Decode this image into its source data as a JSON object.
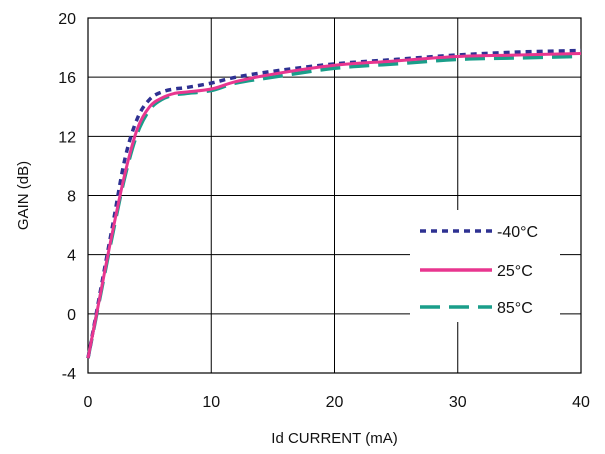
{
  "chart_data": {
    "type": "line",
    "title": "",
    "xlabel": "Id CURRENT (mA)",
    "ylabel": "GAIN (dB)",
    "xlim": [
      0,
      40
    ],
    "ylim": [
      -4,
      20
    ],
    "xticks": [
      0,
      10,
      20,
      30,
      40
    ],
    "yticks": [
      -4,
      0,
      4,
      8,
      12,
      16,
      20
    ],
    "xtick_labels": [
      "0",
      "10",
      "20",
      "30",
      "40"
    ],
    "ytick_labels": [
      "-4",
      "0",
      "4",
      "8",
      "12",
      "16",
      "20"
    ],
    "grid": true,
    "legend_position": "right",
    "series": [
      {
        "name": "-40°C",
        "color": "#2e3192",
        "dash": "dotted",
        "x": [
          0,
          1,
          2,
          3,
          4,
          5,
          6,
          7,
          8,
          10,
          12,
          15,
          20,
          25,
          30,
          35,
          40
        ],
        "y": [
          -3,
          1.5,
          6,
          10.5,
          13.2,
          14.5,
          15.0,
          15.2,
          15.3,
          15.6,
          16.0,
          16.4,
          16.9,
          17.2,
          17.5,
          17.7,
          17.8
        ]
      },
      {
        "name": "25°C",
        "color": "#e8368f",
        "dash": "solid",
        "x": [
          0,
          1,
          2,
          3,
          4,
          5,
          6,
          7,
          8,
          10,
          12,
          15,
          20,
          25,
          30,
          35,
          40
        ],
        "y": [
          -3,
          1.3,
          5.6,
          9.5,
          12.5,
          14.0,
          14.6,
          14.9,
          15.0,
          15.2,
          15.7,
          16.2,
          16.8,
          17.1,
          17.4,
          17.5,
          17.6
        ]
      },
      {
        "name": "85°C",
        "color": "#1a9e8a",
        "dash": "dashed",
        "x": [
          0,
          1,
          2,
          3,
          4,
          5,
          6,
          7,
          8,
          10,
          12,
          15,
          20,
          25,
          30,
          35,
          40
        ],
        "y": [
          -3,
          1.2,
          5.4,
          9.3,
          12.2,
          13.8,
          14.5,
          14.8,
          14.9,
          15.1,
          15.6,
          16.0,
          16.6,
          16.9,
          17.2,
          17.3,
          17.4
        ]
      }
    ]
  }
}
